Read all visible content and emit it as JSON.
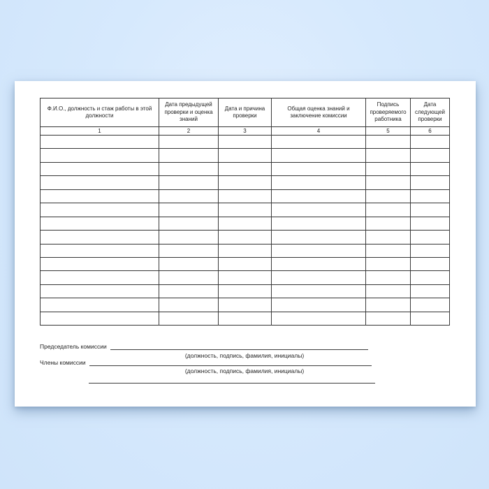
{
  "document": {
    "kind": "knowledge-check-log-form",
    "colors": {
      "background_blue": "#d6e9fd",
      "paper": "#ffffff",
      "table_border": "#3a3a3a",
      "text": "#222222"
    }
  },
  "table": {
    "columns": [
      {
        "label": "Ф.И.О., должность и стаж работы в этой должности",
        "number": "1"
      },
      {
        "label": "Дата предыдущей проверки и оценка знаний",
        "number": "2"
      },
      {
        "label": "Дата и причина проверки",
        "number": "3"
      },
      {
        "label": "Общая оценка знаний и заключение комиссии",
        "number": "4"
      },
      {
        "label": "Подпись проверяемого работника",
        "number": "5"
      },
      {
        "label": "Дата следующей проверки",
        "number": "6"
      }
    ],
    "empty_row_count": 14
  },
  "signatures": {
    "chairman_label": "Председатель комиссии",
    "members_label": "Члены комиссии",
    "hint": "(должность, подпись, фамилия, инициалы)"
  }
}
